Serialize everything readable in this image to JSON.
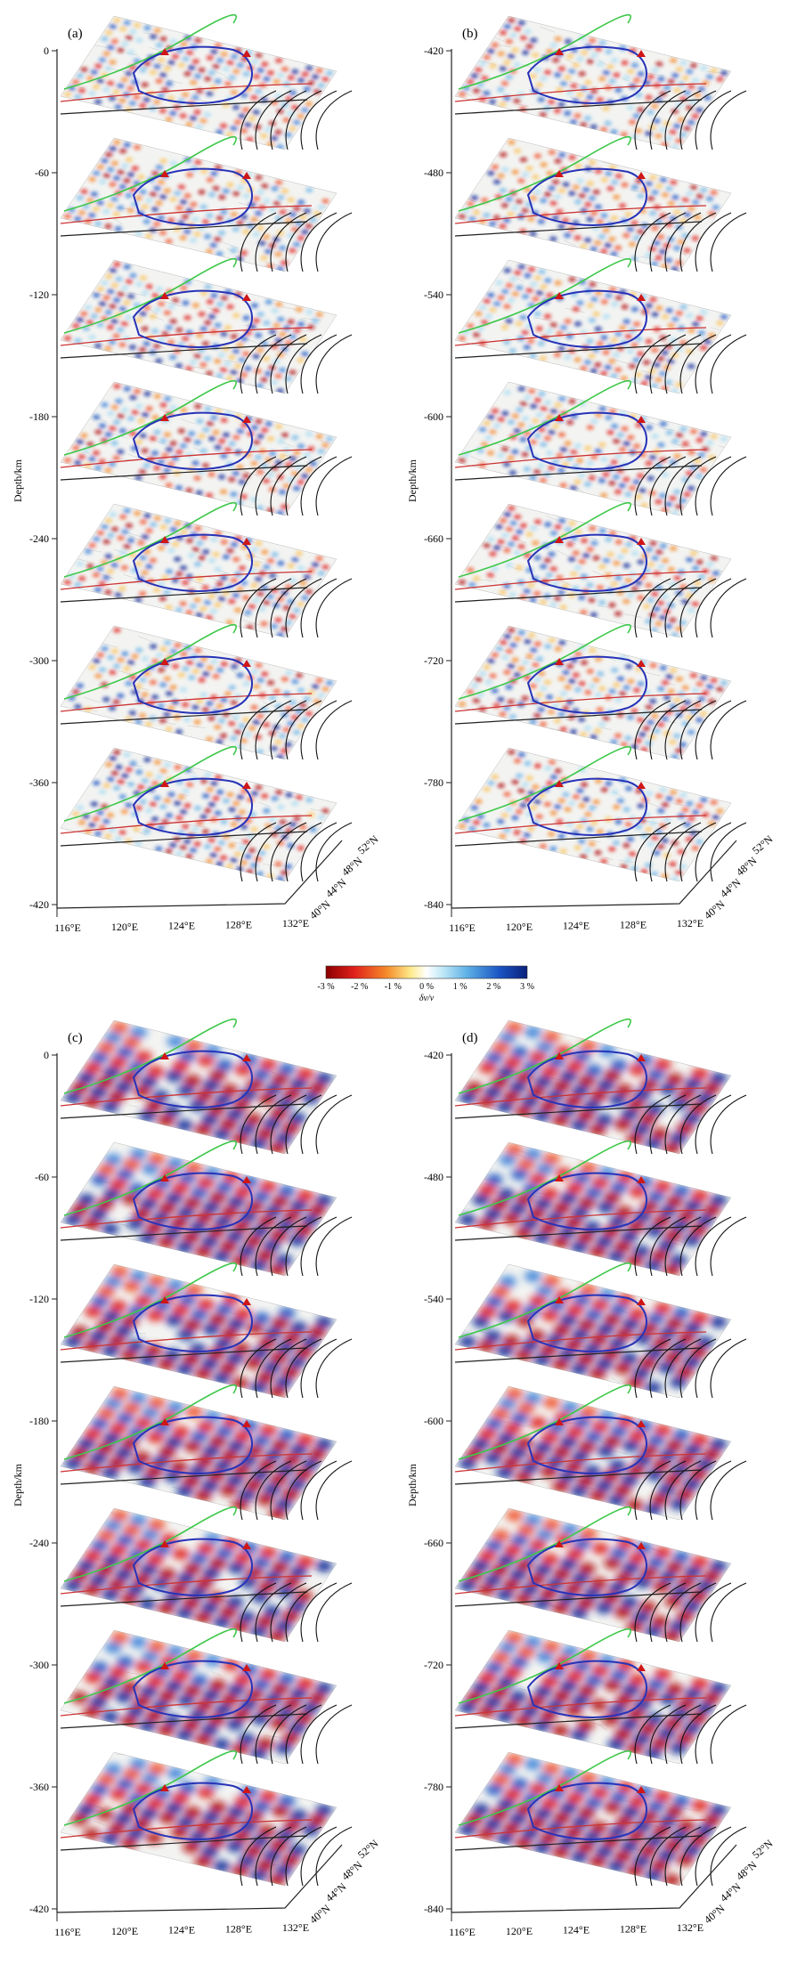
{
  "figure": {
    "colorbar": {
      "ticks": [
        "-3 %",
        "-2 %",
        "-1 %",
        "0 %",
        "1 %",
        "2 %",
        "3 %"
      ],
      "title": "δv/v",
      "colors": [
        "#8b0000",
        "#e0201b",
        "#f58a2a",
        "#fde98a",
        "#ffffff",
        "#bfe8f7",
        "#5fb1e6",
        "#1a56c4",
        "#0a1f7a"
      ]
    },
    "panels": [
      {
        "label": "(a)",
        "depth_label": "Depth/km",
        "z_ticks": [
          "0",
          "-60",
          "-120",
          "-180",
          "-240",
          "-300",
          "-360",
          "-420"
        ],
        "lon_ticks": [
          "116°E",
          "120°E",
          "124°E",
          "128°E",
          "132°E"
        ],
        "lat_ticks": [
          "52°N",
          "48°N",
          "44°N",
          "40°N"
        ],
        "style": "fine",
        "seed": 11
      },
      {
        "label": "(b)",
        "depth_label": "Depth/km",
        "z_ticks": [
          "-420",
          "-480",
          "-540",
          "-600",
          "-660",
          "-720",
          "-780",
          "-840"
        ],
        "lon_ticks": [
          "116°E",
          "120°E",
          "124°E",
          "128°E",
          "132°E"
        ],
        "lat_ticks": [
          "52°N",
          "48°N",
          "44°N",
          "40°N"
        ],
        "style": "fine",
        "seed": 23
      },
      {
        "label": "(c)",
        "depth_label": "Depth/km",
        "z_ticks": [
          "0",
          "-60",
          "-120",
          "-180",
          "-240",
          "-300",
          "-360",
          "-420"
        ],
        "lon_ticks": [
          "116°E",
          "120°E",
          "124°E",
          "128°E",
          "132°E"
        ],
        "lat_ticks": [
          "52°N",
          "48°N",
          "44°N",
          "40°N"
        ],
        "style": "coarse",
        "seed": 37
      },
      {
        "label": "(d)",
        "depth_label": "Depth/km",
        "z_ticks": [
          "-420",
          "-480",
          "-540",
          "-600",
          "-660",
          "-720",
          "-780",
          "-840"
        ],
        "lon_ticks": [
          "116°E",
          "120°E",
          "124°E",
          "128°E",
          "132°E"
        ],
        "lat_ticks": [
          "52°N",
          "48°N",
          "44°N",
          "40°N"
        ],
        "style": "coarse",
        "seed": 53
      }
    ]
  }
}
